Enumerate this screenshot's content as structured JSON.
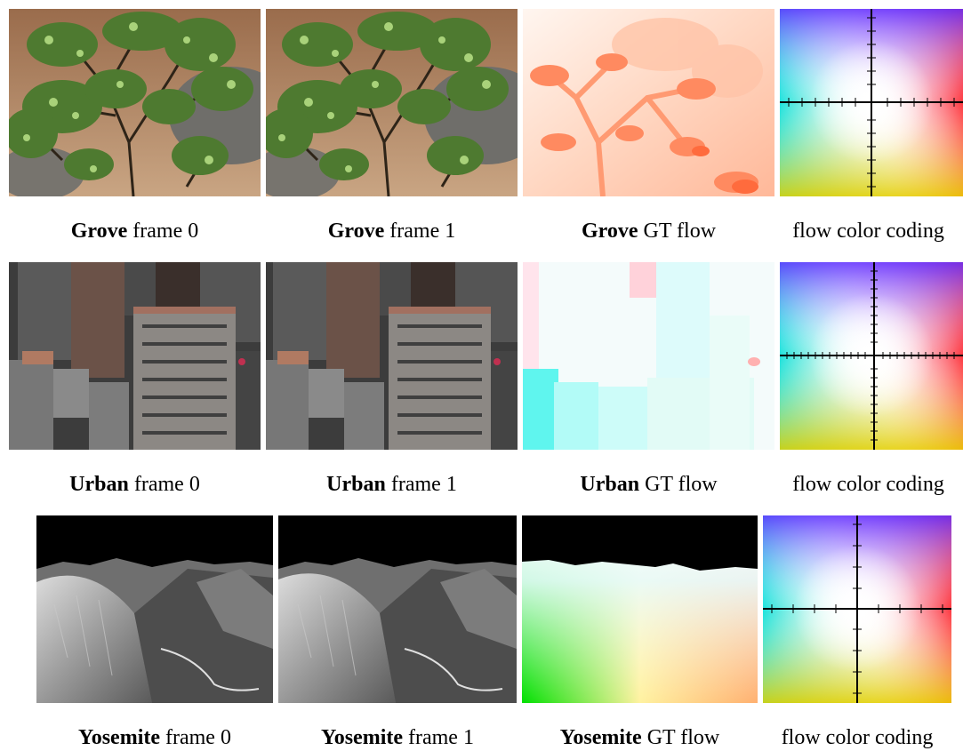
{
  "rows": [
    {
      "name": "Grove",
      "captions": [
        {
          "bold": "Grove",
          "rest": " frame 0"
        },
        {
          "bold": "Grove",
          "rest": " frame 1"
        },
        {
          "bold": "Grove",
          "rest": " GT flow"
        },
        {
          "bold": "",
          "rest": "flow color coding"
        }
      ]
    },
    {
      "name": "Urban",
      "captions": [
        {
          "bold": "Urban",
          "rest": " frame 0"
        },
        {
          "bold": "Urban",
          "rest": " frame 1"
        },
        {
          "bold": "Urban",
          "rest": " GT flow"
        },
        {
          "bold": "",
          "rest": "flow color coding"
        }
      ]
    },
    {
      "name": "Yosemite",
      "captions": [
        {
          "bold": "Yosemite",
          "rest": " frame 0"
        },
        {
          "bold": "Yosemite",
          "rest": " frame 1"
        },
        {
          "bold": "Yosemite",
          "rest": " GT flow"
        },
        {
          "bold": "",
          "rest": "flow color coding"
        }
      ]
    }
  ]
}
